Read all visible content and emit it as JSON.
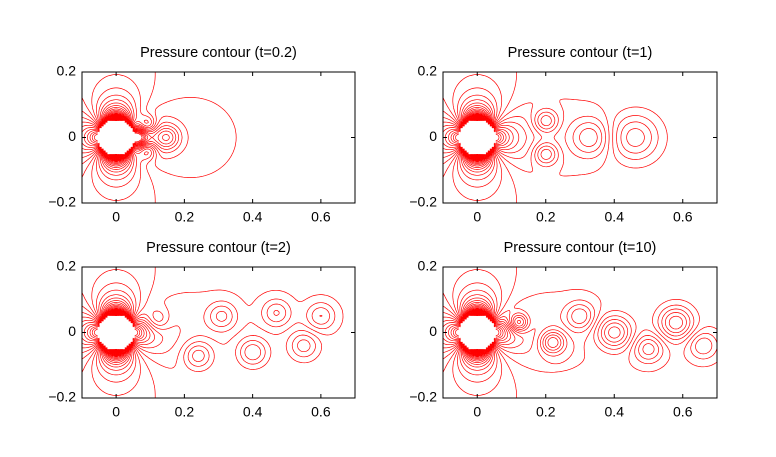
{
  "chart_data": [
    {
      "type": "contour",
      "title": "Pressure contour (t=0.2)",
      "color": "#ff0000",
      "xlim": [
        -0.1,
        0.7
      ],
      "xticks": [
        0,
        0.2,
        0.4,
        0.6
      ],
      "ylim": [
        -0.2,
        0.2
      ],
      "yticks": [
        {
          "value": -0.2,
          "label": "−0.2"
        },
        0,
        0.2
      ]
    },
    {
      "type": "contour",
      "title": "Pressure contour (t=1)",
      "color": "#ff0000",
      "xlim": [
        -0.1,
        0.7
      ],
      "xticks": [
        0,
        0.2,
        0.4,
        0.6
      ],
      "ylim": [
        -0.2,
        0.2
      ],
      "yticks": [
        {
          "value": -0.2,
          "label": "−0.2"
        },
        0,
        0.2
      ]
    },
    {
      "type": "contour",
      "title": "Pressure contour (t=2)",
      "color": "#ff0000",
      "xlim": [
        -0.1,
        0.7
      ],
      "xticks": [
        0,
        0.2,
        0.4,
        0.6
      ],
      "ylim": [
        -0.2,
        0.2
      ],
      "yticks": [
        {
          "value": -0.2,
          "label": "−0.2"
        },
        0,
        0.2
      ]
    },
    {
      "type": "contour",
      "title": "Pressure contour (t=10)",
      "color": "#ff0000",
      "xlim": [
        -0.1,
        0.7
      ],
      "xticks": [
        0,
        0.2,
        0.4,
        0.6
      ],
      "ylim": [
        -0.2,
        0.2
      ],
      "yticks": [
        {
          "value": -0.2,
          "label": "−0.2"
        },
        0,
        0.2
      ]
    }
  ]
}
